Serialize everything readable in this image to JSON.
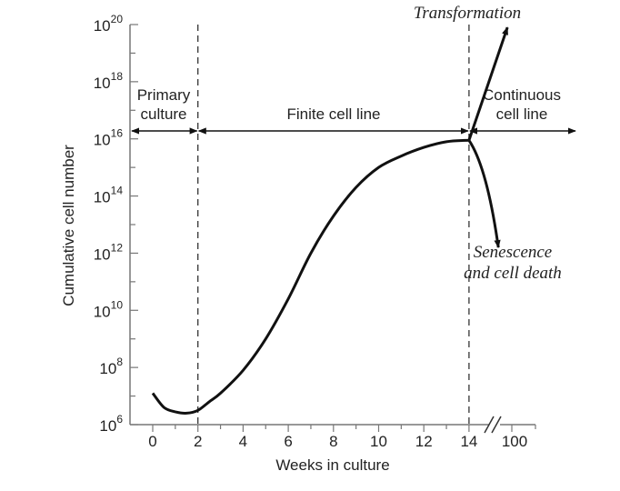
{
  "chart_data": {
    "type": "line",
    "xlabel": "Weeks in culture",
    "ylabel": "Cumulative cell number",
    "x_ticks": [
      "0",
      "2",
      "4",
      "6",
      "8",
      "10",
      "12",
      "14",
      "100"
    ],
    "y_ticks": [
      {
        "base": "10",
        "exp": "20",
        "value": 20
      },
      {
        "base": "10",
        "exp": "18",
        "value": 18
      },
      {
        "base": "10",
        "exp": "16",
        "value": 16
      },
      {
        "base": "10",
        "exp": "14",
        "value": 14
      },
      {
        "base": "10",
        "exp": "12",
        "value": 12
      },
      {
        "base": "10",
        "exp": "10",
        "value": 10
      },
      {
        "base": "10",
        "exp": "8",
        "value": 8
      },
      {
        "base": "10",
        "exp": "6",
        "value": 6
      }
    ],
    "y_log_scale": true,
    "xlim": [
      0,
      14
    ],
    "ylim": [
      6,
      20
    ],
    "x_axis_break": true,
    "grid": false,
    "series": [
      {
        "x": [
          0,
          0.5,
          1,
          1.5,
          2,
          2.5,
          3,
          4,
          5,
          6,
          7,
          8,
          9,
          10,
          11,
          12,
          13,
          14
        ],
        "y": [
          7.1,
          6.6,
          6.45,
          6.4,
          6.5,
          6.8,
          7.1,
          7.9,
          9.0,
          10.4,
          12.0,
          13.3,
          14.3,
          15.0,
          15.4,
          15.7,
          15.9,
          15.95
        ]
      }
    ],
    "branches": {
      "transformation": {
        "label": "Transformation",
        "x": [
          14,
          15.7
        ],
        "y": [
          15.95,
          19.9
        ]
      },
      "senescence": {
        "label_lines": [
          "Senescence",
          "and cell death"
        ],
        "x": [
          14,
          14.8,
          15.3
        ],
        "y": [
          15.95,
          15.0,
          12.2
        ]
      }
    },
    "phases": [
      {
        "label_lines": [
          "Primary",
          "culture"
        ],
        "x_range": [
          0,
          2
        ]
      },
      {
        "label_lines": [
          "Finite cell line"
        ],
        "x_range": [
          2,
          14
        ]
      },
      {
        "label_lines": [
          "Continuous",
          "cell line"
        ],
        "x_range": [
          14,
          100
        ]
      }
    ],
    "dividers_x": [
      2,
      14
    ]
  }
}
